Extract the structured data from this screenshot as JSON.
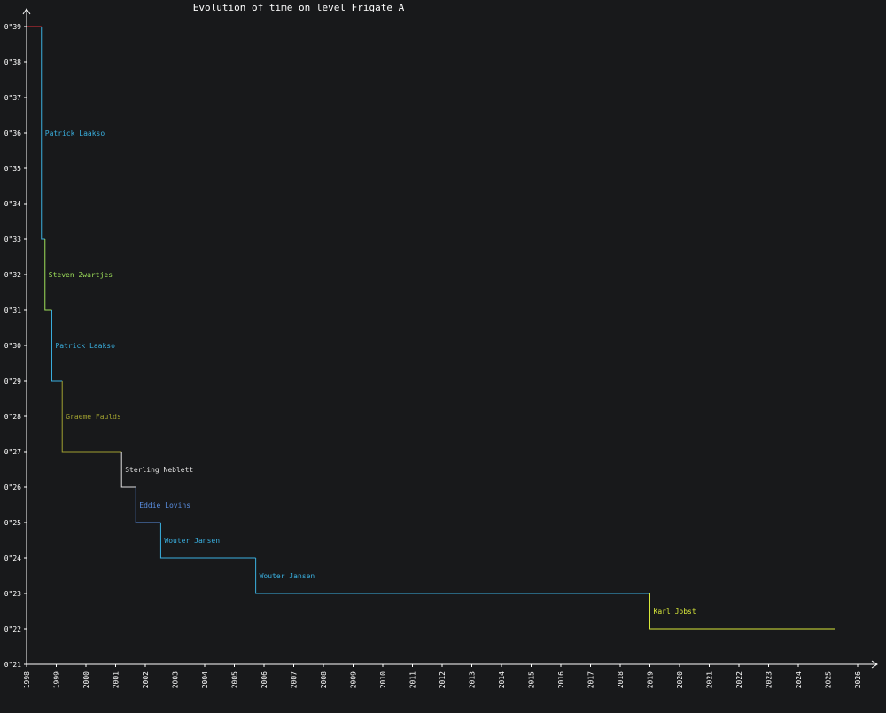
{
  "chart_data": {
    "type": "line",
    "title": "Evolution of time on level Frigate A",
    "xlabel": "",
    "ylabel": "",
    "x_tick_labels": [
      "1998",
      "1999",
      "2000",
      "2001",
      "2002",
      "2003",
      "2004",
      "2005",
      "2006",
      "2007",
      "2008",
      "2009",
      "2010",
      "2011",
      "2012",
      "2013",
      "2014",
      "2015",
      "2016",
      "2017",
      "2018",
      "2019",
      "2020",
      "2021",
      "2022",
      "2023",
      "2024",
      "2025",
      "2026"
    ],
    "y_ticks": [
      21,
      22,
      23,
      24,
      25,
      26,
      27,
      28,
      29,
      30,
      31,
      32,
      33,
      34,
      35,
      36,
      37,
      38,
      39
    ],
    "y_tick_labels": [
      "0\"21",
      "0\"22",
      "0\"23",
      "0\"24",
      "0\"25",
      "0\"26",
      "0\"27",
      "0\"28",
      "0\"29",
      "0\"30",
      "0\"31",
      "0\"32",
      "0\"33",
      "0\"34",
      "0\"35",
      "0\"36",
      "0\"37",
      "0\"38",
      "0\"39"
    ],
    "xlim": [
      1998,
      2026.5
    ],
    "ylim": [
      21,
      39.5
    ],
    "initial": {
      "start": 1998.0,
      "end": 1998.5,
      "time": 39,
      "color": "#e0303a"
    },
    "records": [
      {
        "holder": "Patrick Laakso",
        "start": 1998.5,
        "end": 1998.62,
        "time": 33,
        "prev": 39,
        "color": "#3ab0e0"
      },
      {
        "holder": "Steven Zwartjes",
        "start": 1998.62,
        "end": 1998.85,
        "time": 31,
        "prev": 33,
        "color": "#9ee05a"
      },
      {
        "holder": "Patrick Laakso",
        "start": 1998.85,
        "end": 1999.2,
        "time": 29,
        "prev": 31,
        "color": "#3ab0e0"
      },
      {
        "holder": "Graeme Faulds",
        "start": 1999.2,
        "end": 2001.2,
        "time": 27,
        "prev": 29,
        "color": "#a0a030"
      },
      {
        "holder": "Sterling Neblett",
        "start": 2001.2,
        "end": 2001.68,
        "time": 26,
        "prev": 27,
        "color": "#e0e0e0"
      },
      {
        "holder": "Eddie Lovins",
        "start": 2001.68,
        "end": 2002.52,
        "time": 25,
        "prev": 26,
        "color": "#5a8ee0"
      },
      {
        "holder": "Wouter Jansen",
        "start": 2002.52,
        "end": 2005.72,
        "time": 24,
        "prev": 25,
        "color": "#3ab0e0"
      },
      {
        "holder": "Wouter Jansen",
        "start": 2005.72,
        "end": 2019.0,
        "time": 23,
        "prev": 24,
        "color": "#3ab0e0"
      },
      {
        "holder": "Karl Jobst",
        "start": 2019.0,
        "end": 2025.25,
        "time": 22,
        "prev": 23,
        "color": "#d8e83a"
      }
    ]
  }
}
